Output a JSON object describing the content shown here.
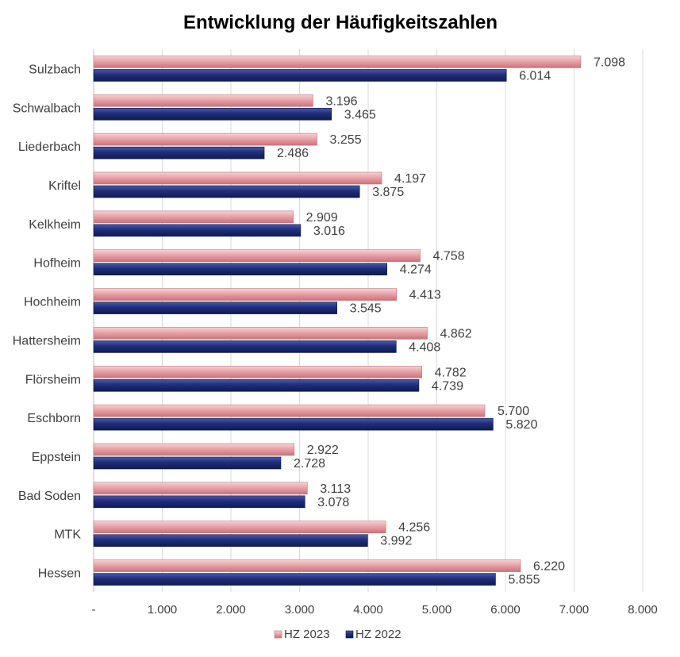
{
  "chart_data": {
    "type": "bar",
    "orientation": "horizontal",
    "title": "Entwicklung der Häufigkeitszahlen",
    "xlabel": "",
    "ylabel": "",
    "categories": [
      "Sulzbach",
      "Schwalbach",
      "Liederbach",
      "Kriftel",
      "Kelkheim",
      "Hofheim",
      "Hochheim",
      "Hattersheim",
      "Flörsheim",
      "Eschborn",
      "Eppstein",
      "Bad Soden",
      "MTK",
      "Hessen"
    ],
    "series": [
      {
        "name": "HZ 2023",
        "color": "#e8a3a8",
        "values": [
          7098,
          3196,
          3255,
          4197,
          2909,
          4758,
          4413,
          4862,
          4782,
          5700,
          2922,
          3113,
          4256,
          6220
        ],
        "labels": [
          "7.098",
          "3.196",
          "3.255",
          "4.197",
          "2.909",
          "4.758",
          "4.413",
          "4.862",
          "4.782",
          "5.700",
          "2.922",
          "3.113",
          "4.256",
          "6.220"
        ]
      },
      {
        "name": "HZ 2022",
        "color": "#1f2e7a",
        "values": [
          6014,
          3465,
          2486,
          3875,
          3016,
          4274,
          3545,
          4408,
          4739,
          5820,
          2728,
          3078,
          3992,
          5855
        ],
        "labels": [
          "6.014",
          "3.465",
          "2.486",
          "3.875",
          "3.016",
          "4.274",
          "3.545",
          "4.408",
          "4.739",
          "5.820",
          "2.728",
          "3.078",
          "3.992",
          "5.855"
        ]
      }
    ],
    "xlim": [
      0,
      8000
    ],
    "xticks": [
      0,
      1000,
      2000,
      3000,
      4000,
      5000,
      6000,
      7000,
      8000
    ],
    "xtick_labels": [
      "-",
      "1.000",
      "2.000",
      "3.000",
      "4.000",
      "5.000",
      "6.000",
      "7.000",
      "8.000"
    ],
    "grid": "vertical",
    "legend_position": "bottom"
  }
}
